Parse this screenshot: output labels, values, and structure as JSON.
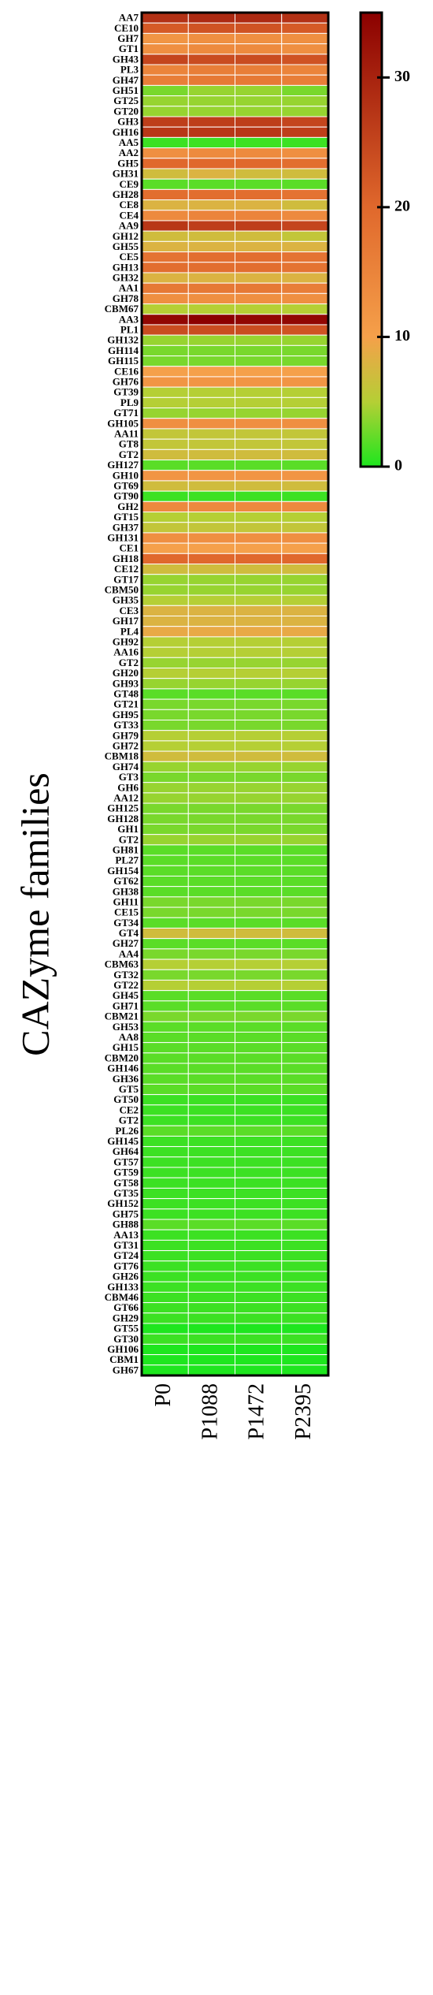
{
  "chart_data": {
    "type": "heatmap",
    "ylabel": "CAZyme families",
    "categories": [
      "AA7",
      "CE10",
      "GH7",
      "GT1",
      "GH43",
      "PL3",
      "GH47",
      "GH51",
      "GT25",
      "GT20",
      "GH3",
      "GH16",
      "AA5",
      "AA2",
      "GH5",
      "GH31",
      "CE9",
      "GH28",
      "CE8",
      "CE4",
      "AA9",
      "GH12",
      "GH55",
      "CE5",
      "GH13",
      "GH32",
      "AA1",
      "GH78",
      "CBM67",
      "AA3",
      "PL1",
      "GH132",
      "GH114",
      "GH115",
      "CE16",
      "GH76",
      "GT39",
      "PL9",
      "GT71",
      "GH105",
      "AA11",
      "GT8",
      "GT2",
      "GH127",
      "GH10",
      "GT69",
      "GT90",
      "GH2",
      "GT15",
      "GH37",
      "GH131",
      "CE1",
      "GH18",
      "CE12",
      "GT17",
      "CBM50",
      "GH35",
      "CE3",
      "GH17",
      "PL4",
      "GH92",
      "AA16",
      "GT2",
      "GH20",
      "GH93",
      "GT48",
      "GT21",
      "GH95",
      "GT33",
      "GH79",
      "GH72",
      "CBM18",
      "GH74",
      "GT3",
      "GH6",
      "AA12",
      "GH125",
      "GH128",
      "GH1",
      "GT2",
      "GH81",
      "PL27",
      "GH154",
      "GT62",
      "GH38",
      "GH11",
      "CE15",
      "GT34",
      "GT4",
      "GH27",
      "AA4",
      "CBM63",
      "GT32",
      "GT22",
      "GH45",
      "GH71",
      "CBM21",
      "GH53",
      "AA8",
      "GH15",
      "CBM20",
      "GH146",
      "GH36",
      "GT5",
      "GT50",
      "CE2",
      "GT2",
      "PL26",
      "GH145",
      "GH64",
      "GT57",
      "GT59",
      "GT58",
      "GT35",
      "GH152",
      "GH75",
      "GH88",
      "AA13",
      "GT31",
      "GT24",
      "GT76",
      "GH26",
      "GH133",
      "CBM46",
      "GT66",
      "GH29",
      "GT55",
      "GT30",
      "GH106",
      "CBM1",
      "GH67"
    ],
    "series": [
      {
        "name": "P0",
        "values": [
          28,
          22,
          12,
          13,
          25,
          15,
          16,
          3,
          4,
          4,
          26,
          27,
          1,
          13,
          20,
          7,
          2,
          19,
          8,
          14,
          27,
          7,
          8,
          18,
          19,
          8,
          17,
          13,
          5,
          34,
          24,
          4,
          3,
          3,
          10,
          12,
          5,
          5,
          4,
          13,
          6,
          6,
          7,
          2,
          12,
          7,
          1,
          14,
          5,
          6,
          13,
          10,
          20,
          7,
          4,
          4,
          5,
          8,
          8,
          9,
          5,
          5,
          4,
          5,
          4,
          2,
          3,
          3,
          3,
          5,
          5,
          7,
          4,
          3,
          4,
          4,
          3,
          3,
          3,
          4,
          2,
          2,
          2,
          2,
          2,
          3,
          3,
          2,
          7,
          2,
          3,
          5,
          3,
          5,
          2,
          2,
          3,
          2,
          2,
          2,
          2,
          2,
          2,
          2,
          1,
          1,
          1,
          2,
          1,
          1,
          1,
          1,
          1,
          1,
          1,
          1,
          2,
          1,
          1,
          1,
          1,
          1,
          1,
          1,
          1,
          1,
          0,
          1,
          0,
          0,
          0
        ]
      },
      {
        "name": "P1088",
        "values": [
          29,
          23,
          13,
          14,
          24,
          16,
          17,
          4,
          4,
          4,
          26,
          27,
          1,
          14,
          20,
          8,
          2,
          19,
          8,
          15,
          26,
          7,
          8,
          19,
          19,
          8,
          17,
          13,
          5,
          35,
          24,
          4,
          3,
          3,
          10,
          12,
          5,
          5,
          4,
          13,
          6,
          6,
          7,
          2,
          12,
          7,
          1,
          14,
          5,
          6,
          13,
          10,
          20,
          7,
          4,
          4,
          5,
          8,
          8,
          9,
          5,
          5,
          4,
          5,
          4,
          2,
          3,
          3,
          3,
          5,
          5,
          7,
          4,
          3,
          4,
          4,
          3,
          3,
          3,
          4,
          2,
          2,
          2,
          2,
          2,
          3,
          3,
          2,
          7,
          2,
          3,
          5,
          3,
          5,
          2,
          2,
          3,
          2,
          2,
          2,
          2,
          2,
          2,
          2,
          1,
          1,
          1,
          2,
          1,
          1,
          1,
          1,
          1,
          1,
          1,
          1,
          2,
          1,
          1,
          1,
          1,
          1,
          1,
          1,
          1,
          1,
          0,
          1,
          0,
          0,
          0
        ]
      },
      {
        "name": "P1472",
        "values": [
          29,
          23,
          13,
          14,
          24,
          16,
          17,
          4,
          4,
          4,
          26,
          27,
          1,
          14,
          20,
          7,
          2,
          19,
          8,
          15,
          26,
          7,
          8,
          19,
          19,
          8,
          17,
          13,
          5,
          34,
          24,
          4,
          3,
          3,
          10,
          12,
          5,
          5,
          4,
          13,
          6,
          6,
          7,
          2,
          12,
          7,
          1,
          14,
          5,
          6,
          13,
          10,
          20,
          7,
          4,
          4,
          5,
          8,
          8,
          9,
          5,
          5,
          4,
          5,
          4,
          2,
          3,
          3,
          3,
          5,
          5,
          7,
          4,
          3,
          4,
          4,
          3,
          3,
          3,
          4,
          2,
          2,
          2,
          2,
          2,
          3,
          3,
          2,
          7,
          2,
          3,
          5,
          3,
          5,
          2,
          2,
          3,
          2,
          2,
          2,
          2,
          2,
          2,
          2,
          1,
          1,
          1,
          2,
          1,
          1,
          1,
          1,
          1,
          1,
          1,
          1,
          2,
          1,
          1,
          1,
          1,
          1,
          1,
          1,
          1,
          1,
          0,
          1,
          0,
          0,
          0
        ]
      },
      {
        "name": "P2395",
        "values": [
          28,
          22,
          13,
          13,
          23,
          15,
          16,
          3,
          4,
          4,
          25,
          26,
          1,
          13,
          19,
          7,
          2,
          18,
          7,
          14,
          25,
          6,
          8,
          18,
          18,
          8,
          16,
          13,
          5,
          34,
          23,
          4,
          3,
          3,
          10,
          12,
          5,
          5,
          4,
          13,
          6,
          6,
          7,
          2,
          12,
          7,
          1,
          14,
          5,
          6,
          13,
          10,
          20,
          7,
          4,
          4,
          5,
          8,
          8,
          9,
          5,
          5,
          4,
          5,
          4,
          2,
          3,
          3,
          3,
          5,
          5,
          7,
          4,
          3,
          4,
          4,
          3,
          3,
          3,
          4,
          2,
          2,
          2,
          2,
          2,
          3,
          3,
          2,
          7,
          2,
          3,
          5,
          3,
          5,
          2,
          2,
          3,
          2,
          2,
          2,
          2,
          2,
          2,
          2,
          1,
          1,
          1,
          2,
          1,
          1,
          1,
          1,
          1,
          1,
          1,
          1,
          2,
          1,
          1,
          1,
          1,
          1,
          1,
          1,
          1,
          1,
          0,
          1,
          0,
          0,
          0
        ]
      }
    ],
    "colorbar": {
      "lim": [
        0,
        35
      ],
      "ticks": [
        0,
        10,
        20,
        30
      ]
    },
    "colorscale": [
      [
        0,
        "#1ee61e"
      ],
      [
        5,
        "#b5cf35"
      ],
      [
        10,
        "#f5a04a"
      ],
      [
        20,
        "#e0682c"
      ],
      [
        35,
        "#8b0000"
      ]
    ]
  }
}
